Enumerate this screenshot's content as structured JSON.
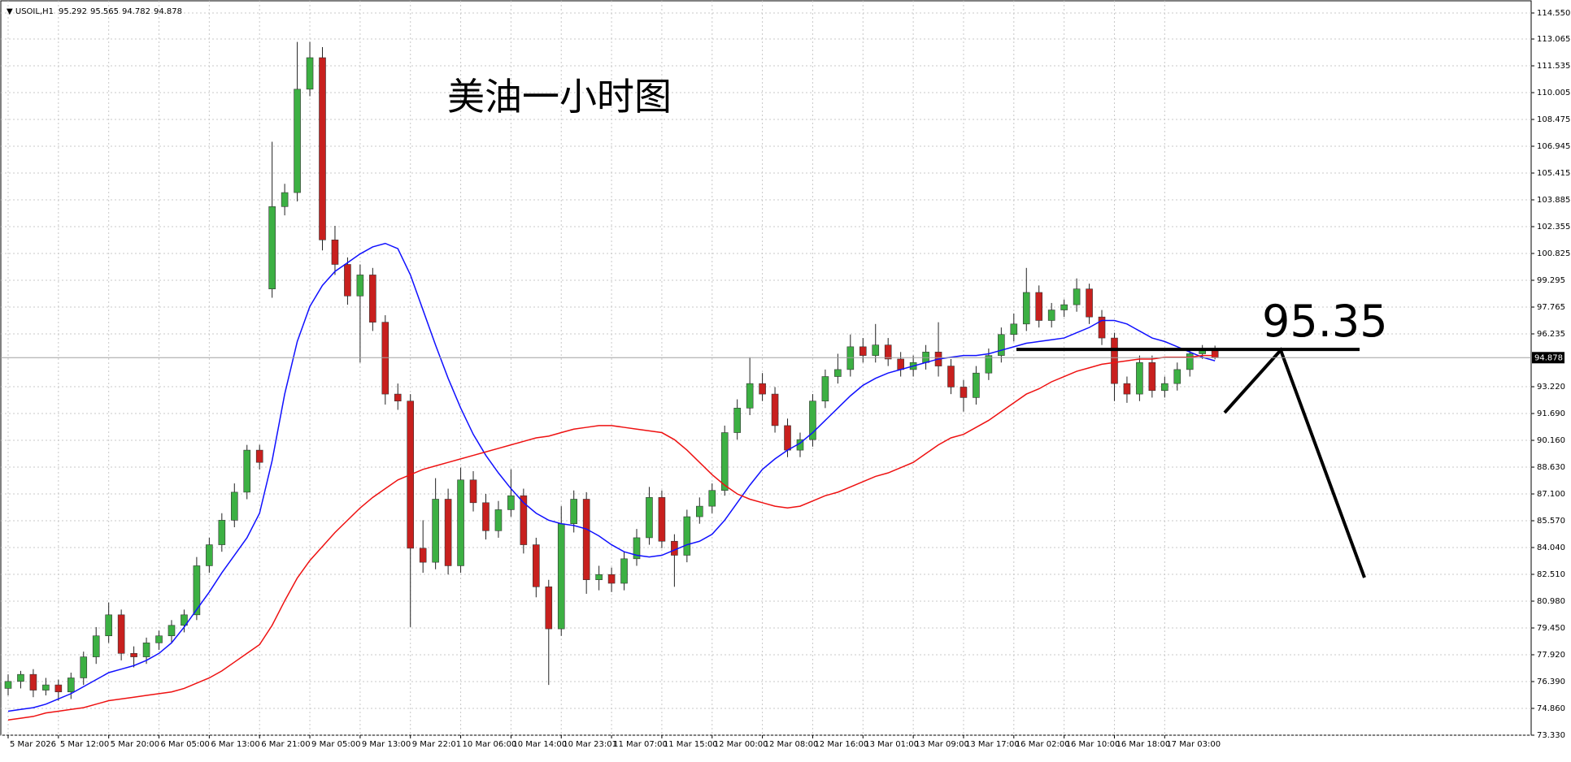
{
  "chart_data": {
    "type": "candlestick",
    "symbol": "USOIL,H1",
    "title": "美油一小时图",
    "level": 95.35,
    "up_color": "#3cb043",
    "down_color": "#c8201e",
    "grid": true,
    "ylim": [
      73.33,
      114.55
    ],
    "yticks": [
      {
        "value": 114.55,
        "label": "114.550"
      },
      113.065,
      111.535,
      110.005,
      108.475,
      106.945,
      105.415,
      103.885,
      102.355,
      100.825,
      99.295,
      97.765,
      96.235,
      {
        "value": 93.22,
        "label": "93.220"
      },
      {
        "value": 91.69,
        "label": "91.690"
      },
      {
        "value": 90.16,
        "label": "90.160"
      },
      {
        "value": 88.63,
        "label": "88.630"
      },
      {
        "value": 87.1,
        "label": "87.100"
      },
      {
        "value": 85.57,
        "label": "85.570"
      },
      {
        "value": 84.04,
        "label": "84.040"
      },
      {
        "value": 82.51,
        "label": "82.510"
      },
      {
        "value": 80.98,
        "label": "80.980"
      },
      {
        "value": 79.45,
        "label": "79.450"
      },
      {
        "value": 77.92,
        "label": "77.920"
      },
      {
        "value": 76.39,
        "label": "76.390"
      },
      {
        "value": 74.86,
        "label": "74.860"
      },
      {
        "value": 73.33,
        "label": "73.330"
      }
    ],
    "categories": [
      "5 Mar 2026",
      null,
      null,
      null,
      "5 Mar 12:00",
      null,
      null,
      null,
      "5 Mar 20:00",
      null,
      null,
      null,
      "6 Mar 05:00",
      null,
      null,
      null,
      "6 Mar 13:00",
      null,
      null,
      null,
      "6 Mar 21:00",
      null,
      null,
      null,
      "9 Mar 05:00",
      null,
      null,
      null,
      "9 Mar 13:00",
      null,
      null,
      null,
      "9 Mar 22:01",
      null,
      null,
      null,
      "10 Mar 06:00",
      null,
      null,
      null,
      "10 Mar 14:00",
      null,
      null,
      null,
      "10 Mar 23:01",
      null,
      null,
      null,
      "11 Mar 07:00",
      null,
      null,
      null,
      "11 Mar 15:00",
      null,
      null,
      null,
      "12 Mar 00:00",
      null,
      null,
      null,
      "12 Mar 08:00",
      null,
      null,
      null,
      "12 Mar 16:00",
      null,
      null,
      null,
      "13 Mar 01:00",
      null,
      null,
      null,
      "13 Mar 09:00",
      null,
      null,
      null,
      "13 Mar 17:00",
      null,
      null,
      null,
      "16 Mar 02:00",
      null,
      null,
      null,
      "16 Mar 10:00",
      null,
      null,
      null,
      "16 Mar 18:00",
      null,
      null,
      null,
      "17 Mar 03:00",
      null,
      null,
      null,
      null
    ],
    "open": [
      76.0,
      76.4,
      76.8,
      75.9,
      76.2,
      75.8,
      76.6,
      77.8,
      79.0,
      80.2,
      78.0,
      77.8,
      78.6,
      79.0,
      79.6,
      80.2,
      83.0,
      84.2,
      85.6,
      87.2,
      89.6,
      98.8,
      103.5,
      104.3,
      110.2,
      112.0,
      101.6,
      100.2,
      98.4,
      99.6,
      96.9,
      92.8,
      92.4,
      84.0,
      83.2,
      86.8,
      83.0,
      87.9,
      86.6,
      85.0,
      86.2,
      87.0,
      84.2,
      81.8,
      79.4,
      85.4,
      86.8,
      82.2,
      82.5,
      82.0,
      83.4,
      84.6,
      86.9,
      84.4,
      83.6,
      85.8,
      86.4,
      87.3,
      90.6,
      92.0,
      93.4,
      92.8,
      91.0,
      89.6,
      90.2,
      92.4,
      93.8,
      94.2,
      95.5,
      95.0,
      95.6,
      94.8,
      94.2,
      94.6,
      95.2,
      94.4,
      93.2,
      92.6,
      94.0,
      95.0,
      96.2,
      96.8,
      98.6,
      97.0,
      97.6,
      97.9,
      98.8,
      97.2,
      96.0,
      93.4,
      92.8,
      94.6,
      93.0,
      93.4,
      94.2,
      95.1,
      95.292
    ],
    "high": [
      76.8,
      77.0,
      77.1,
      76.6,
      76.5,
      76.9,
      78.1,
      79.5,
      80.9,
      80.5,
      78.4,
      78.9,
      79.3,
      79.9,
      80.5,
      83.5,
      84.6,
      86.0,
      87.7,
      89.9,
      89.9,
      107.2,
      104.8,
      112.9,
      112.9,
      112.6,
      102.4,
      100.6,
      100.2,
      100.0,
      97.3,
      93.4,
      92.8,
      85.6,
      88.0,
      87.4,
      88.6,
      88.4,
      87.1,
      86.7,
      88.5,
      87.4,
      84.6,
      82.2,
      86.4,
      87.3,
      87.2,
      83.0,
      82.9,
      83.8,
      85.1,
      87.5,
      87.3,
      84.8,
      86.2,
      86.9,
      87.7,
      91.0,
      92.5,
      94.9,
      94.0,
      93.2,
      91.4,
      90.6,
      92.8,
      94.2,
      95.1,
      96.2,
      96.0,
      96.8,
      96.0,
      95.2,
      95.0,
      95.6,
      96.9,
      94.8,
      93.6,
      94.4,
      95.4,
      96.6,
      97.4,
      100.0,
      99.0,
      98.0,
      98.2,
      99.4,
      99.1,
      97.6,
      96.3,
      93.8,
      95.0,
      95.0,
      93.8,
      94.6,
      95.4,
      95.6,
      95.565
    ],
    "low": [
      75.6,
      76.0,
      75.5,
      75.6,
      75.3,
      75.4,
      76.2,
      77.4,
      78.6,
      77.6,
      77.2,
      77.4,
      78.2,
      78.6,
      79.2,
      79.9,
      82.6,
      83.8,
      85.2,
      86.8,
      88.5,
      98.3,
      103.0,
      103.8,
      109.8,
      101.0,
      99.6,
      97.9,
      94.6,
      96.4,
      92.2,
      91.9,
      79.5,
      82.6,
      82.8,
      82.5,
      82.6,
      86.1,
      84.5,
      84.6,
      85.8,
      83.7,
      81.2,
      76.2,
      79.0,
      84.9,
      81.4,
      81.6,
      81.5,
      81.6,
      83.0,
      84.2,
      84.0,
      81.8,
      83.2,
      85.4,
      86.0,
      87.0,
      90.2,
      91.6,
      92.4,
      90.6,
      89.2,
      89.2,
      89.8,
      92.0,
      93.4,
      93.8,
      94.6,
      94.6,
      94.4,
      93.8,
      93.8,
      94.2,
      93.8,
      92.8,
      91.8,
      92.2,
      93.6,
      94.6,
      95.8,
      96.4,
      96.6,
      96.6,
      97.2,
      97.5,
      96.8,
      95.6,
      92.4,
      92.3,
      92.4,
      92.6,
      92.6,
      93.0,
      93.8,
      94.8,
      94.782
    ],
    "close": [
      76.4,
      76.8,
      75.9,
      76.2,
      75.8,
      76.6,
      77.8,
      79.0,
      80.2,
      78.0,
      77.8,
      78.6,
      79.0,
      79.6,
      80.2,
      83.0,
      84.2,
      85.6,
      87.2,
      89.6,
      88.9,
      103.5,
      104.3,
      110.2,
      112.0,
      101.6,
      100.2,
      98.4,
      99.6,
      96.9,
      92.8,
      92.4,
      84.0,
      83.2,
      86.8,
      83.0,
      87.9,
      86.6,
      85.0,
      86.2,
      87.0,
      84.2,
      81.8,
      79.4,
      85.4,
      86.8,
      82.2,
      82.5,
      82.0,
      83.4,
      84.6,
      86.9,
      84.4,
      83.6,
      85.8,
      86.4,
      87.3,
      90.6,
      92.0,
      93.4,
      92.8,
      91.0,
      89.6,
      90.2,
      92.4,
      93.8,
      94.2,
      95.5,
      95.0,
      95.6,
      94.8,
      94.2,
      94.6,
      95.2,
      94.4,
      93.2,
      92.6,
      94.0,
      95.0,
      96.2,
      96.8,
      98.6,
      97.0,
      97.6,
      97.9,
      98.8,
      97.2,
      96.0,
      93.4,
      92.8,
      94.6,
      93.0,
      93.4,
      94.2,
      95.1,
      95.29,
      94.878
    ],
    "series": [
      {
        "color": "#1010ff",
        "values": [
          74.7,
          74.8,
          74.9,
          75.1,
          75.4,
          75.7,
          76.1,
          76.5,
          76.9,
          77.1,
          77.3,
          77.6,
          78.0,
          78.6,
          79.5,
          80.5,
          81.5,
          82.6,
          83.6,
          84.6,
          86.0,
          89.0,
          92.8,
          95.8,
          97.8,
          99.0,
          99.8,
          100.3,
          100.8,
          101.2,
          101.4,
          101.1,
          99.6,
          97.6,
          95.6,
          93.7,
          92.0,
          90.5,
          89.3,
          88.3,
          87.4,
          86.6,
          86.0,
          85.6,
          85.4,
          85.3,
          85.1,
          84.7,
          84.2,
          83.8,
          83.6,
          83.5,
          83.6,
          83.9,
          84.2,
          84.4,
          84.8,
          85.6,
          86.6,
          87.6,
          88.5,
          89.1,
          89.6,
          90.0,
          90.6,
          91.3,
          92.0,
          92.7,
          93.3,
          93.7,
          94.0,
          94.2,
          94.4,
          94.6,
          94.8,
          94.9,
          95.0,
          95.0,
          95.1,
          95.3,
          95.5,
          95.7,
          95.8,
          95.9,
          96.0,
          96.3,
          96.6,
          97.0,
          97.0,
          96.8,
          96.4,
          96.0,
          95.8,
          95.5,
          95.2,
          94.9,
          94.7
        ]
      },
      {
        "color": "#ee1111",
        "values": [
          74.2,
          74.3,
          74.4,
          74.6,
          74.7,
          74.8,
          74.9,
          75.1,
          75.3,
          75.4,
          75.5,
          75.6,
          75.7,
          75.8,
          76.0,
          76.3,
          76.6,
          77.0,
          77.5,
          78.0,
          78.5,
          79.6,
          81.0,
          82.3,
          83.3,
          84.1,
          84.9,
          85.6,
          86.3,
          86.9,
          87.4,
          87.9,
          88.2,
          88.5,
          88.7,
          88.9,
          89.1,
          89.3,
          89.5,
          89.7,
          89.9,
          90.1,
          90.3,
          90.4,
          90.6,
          90.8,
          90.9,
          91.0,
          91.0,
          90.9,
          90.8,
          90.7,
          90.6,
          90.2,
          89.6,
          88.9,
          88.2,
          87.6,
          87.1,
          86.8,
          86.6,
          86.4,
          86.3,
          86.4,
          86.7,
          87.0,
          87.2,
          87.5,
          87.8,
          88.1,
          88.3,
          88.6,
          88.9,
          89.4,
          89.9,
          90.3,
          90.5,
          90.9,
          91.3,
          91.8,
          92.3,
          92.8,
          93.1,
          93.5,
          93.8,
          94.1,
          94.3,
          94.5,
          94.6,
          94.7,
          94.8,
          94.8,
          94.9,
          94.9,
          94.9,
          95.0,
          95.0
        ]
      }
    ]
  }
}
